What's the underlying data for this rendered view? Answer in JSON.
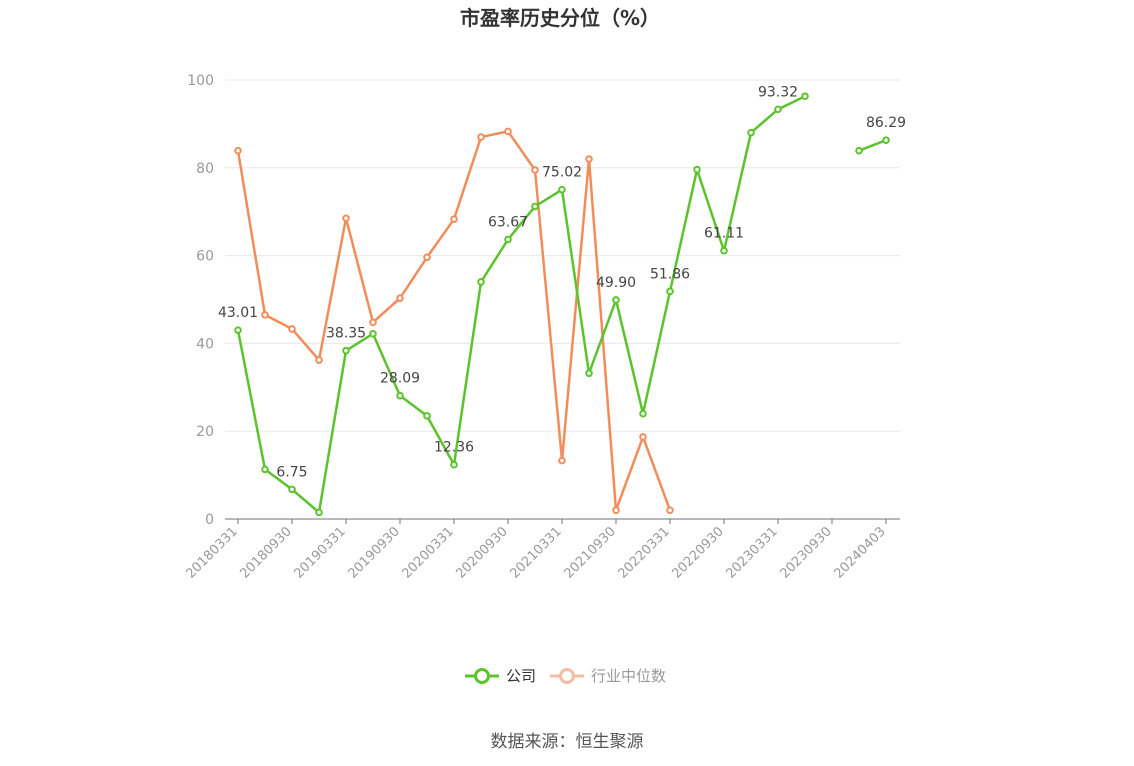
{
  "chart_data": {
    "type": "line",
    "title": "市盈率历史分位（%）",
    "ylim": [
      0,
      100
    ],
    "yticks": [
      0,
      20,
      40,
      60,
      80,
      100
    ],
    "x": [
      "20180331",
      "20180630",
      "20180930",
      "20181231",
      "20190331",
      "20190630",
      "20190930",
      "20191231",
      "20200331",
      "20200630",
      "20200930",
      "20201231",
      "20210331",
      "20210630",
      "20210930",
      "20211231",
      "20220331",
      "20220630",
      "20220930",
      "20221231",
      "20230331",
      "20230630",
      "20230930",
      "20231231",
      "20240403"
    ],
    "xtick_labels": [
      "20180331",
      "20180930",
      "20190331",
      "20190930",
      "20200331",
      "20200930",
      "20210331",
      "20210930",
      "20220331",
      "20220930",
      "20230331",
      "20230930",
      "20240403"
    ],
    "series": [
      {
        "name": "公司",
        "color": "#5cc22d",
        "values": [
          43.01,
          11.3,
          6.75,
          1.5,
          38.35,
          42.2,
          28.09,
          23.5,
          12.36,
          54.0,
          63.67,
          71.2,
          75.02,
          33.2,
          49.9,
          24.0,
          51.86,
          79.6,
          61.11,
          88.0,
          93.32,
          96.3,
          null,
          83.9,
          86.29
        ],
        "labels": {
          "0": "43.01",
          "2": "6.75",
          "4": "38.35",
          "6": "28.09",
          "8": "12.36",
          "10": "63.67",
          "12": "75.02",
          "14": "49.90",
          "16": "51.86",
          "18": "61.11",
          "20": "93.32",
          "24": "86.29"
        }
      },
      {
        "name": "行业中位数",
        "color": "#f28c5a",
        "values": [
          83.9,
          46.5,
          43.3,
          36.2,
          68.5,
          44.8,
          50.3,
          59.6,
          68.3,
          87.0,
          88.3,
          79.5,
          13.3,
          82.0,
          2.0,
          18.7,
          2.0,
          null,
          null,
          null,
          null,
          null,
          null,
          null,
          null
        ]
      }
    ],
    "legend": {
      "position": "bottom"
    },
    "grid": true
  },
  "footer": {
    "source": "数据来源：恒生聚源"
  }
}
